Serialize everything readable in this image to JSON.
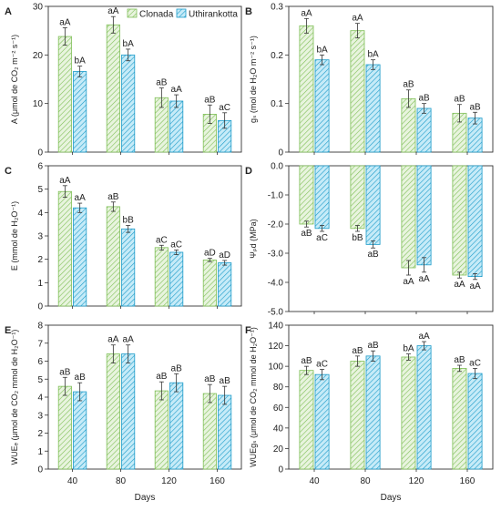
{
  "legend": [
    {
      "name": "Clonada",
      "color": "#7fbf57",
      "fill": "#e6f3dc"
    },
    {
      "name": "Uthirankotta",
      "color": "#1c9bc9",
      "fill": "#b9e4f5"
    }
  ],
  "chart_data": [
    {
      "type": "bar",
      "panel": "A",
      "ylabel": "A (μmol de CO₂ m⁻² s⁻¹)",
      "categories": [
        "40",
        "80",
        "120",
        "160"
      ],
      "ylim": [
        0,
        30
      ],
      "yticks": [
        "0",
        "10",
        "20",
        "30"
      ],
      "series": [
        {
          "name": "Clonada",
          "values": [
            23.8,
            26.2,
            11.2,
            7.8
          ],
          "errors": [
            1.8,
            1.7,
            2.0,
            1.9
          ],
          "labels": [
            "aA",
            "aA",
            "aB",
            "aB"
          ]
        },
        {
          "name": "Uthirankotta",
          "values": [
            16.6,
            20.0,
            10.5,
            6.5
          ],
          "errors": [
            1.1,
            1.2,
            1.3,
            1.6
          ],
          "labels": [
            "bA",
            "bA",
            "aA",
            "aC"
          ]
        }
      ]
    },
    {
      "type": "bar",
      "panel": "B",
      "ylabel": "gₛ (mol de H₂O m⁻² s⁻¹)",
      "categories": [
        "40",
        "80",
        "120",
        "160"
      ],
      "ylim": [
        0,
        0.3
      ],
      "yticks": [
        "0",
        "0.1",
        "0.2",
        "0.3"
      ],
      "series": [
        {
          "name": "Clonada",
          "values": [
            0.26,
            0.25,
            0.11,
            0.08
          ],
          "errors": [
            0.015,
            0.015,
            0.018,
            0.018
          ],
          "labels": [
            "aA",
            "aA",
            "aB",
            "aB"
          ]
        },
        {
          "name": "Uthirankotta",
          "values": [
            0.19,
            0.18,
            0.09,
            0.07
          ],
          "errors": [
            0.01,
            0.01,
            0.01,
            0.012
          ],
          "labels": [
            "bA",
            "bA",
            "aB",
            "aB"
          ]
        }
      ]
    },
    {
      "type": "bar",
      "panel": "C",
      "ylabel": "E (mmol de H₂O⁻¹)",
      "categories": [
        "40",
        "80",
        "120",
        "160"
      ],
      "ylim": [
        0,
        6
      ],
      "yticks": [
        "0",
        "1",
        "2",
        "3",
        "4",
        "5",
        "6"
      ],
      "series": [
        {
          "name": "Clonada",
          "values": [
            4.9,
            4.25,
            2.5,
            1.97
          ],
          "errors": [
            0.25,
            0.2,
            0.1,
            0.07
          ],
          "labels": [
            "aA",
            "aB",
            "aC",
            "aD"
          ]
        },
        {
          "name": "Uthirankotta",
          "values": [
            4.2,
            3.3,
            2.3,
            1.85
          ],
          "errors": [
            0.2,
            0.15,
            0.1,
            0.1
          ],
          "labels": [
            "aA",
            "bB",
            "aC",
            "aD"
          ]
        }
      ]
    },
    {
      "type": "bar",
      "panel": "D",
      "ylabel": "Ψₚd (MPa)",
      "categories": [
        "40",
        "80",
        "120",
        "160"
      ],
      "ylim": [
        -5,
        0
      ],
      "yticks": [
        "0.0",
        "-1.0",
        "-2.0",
        "-3.0",
        "-4.0",
        "-5.0"
      ],
      "series": [
        {
          "name": "Clonada",
          "values": [
            -2.0,
            -2.15,
            -3.5,
            -3.75
          ],
          "errors": [
            0.1,
            0.1,
            0.25,
            0.1
          ],
          "labels": [
            "aB",
            "bB",
            "aA",
            "aA"
          ]
        },
        {
          "name": "Uthirankotta",
          "values": [
            -2.15,
            -2.7,
            -3.4,
            -3.8
          ],
          "errors": [
            0.1,
            0.12,
            0.25,
            0.1
          ],
          "labels": [
            "aC",
            "aB",
            "aA",
            "aA"
          ]
        }
      ]
    },
    {
      "type": "bar",
      "panel": "E",
      "ylabel": "WUEₑ (μmol de CO₂ mmol de H₂O⁻¹)",
      "categories": [
        "40",
        "80",
        "120",
        "160"
      ],
      "ylim": [
        0,
        8
      ],
      "yticks": [
        "0",
        "1",
        "2",
        "3",
        "4",
        "5",
        "6",
        "7",
        "8"
      ],
      "series": [
        {
          "name": "Clonada",
          "values": [
            4.6,
            6.4,
            4.35,
            4.2
          ],
          "errors": [
            0.5,
            0.5,
            0.5,
            0.5
          ],
          "labels": [
            "aB",
            "aA",
            "aB",
            "aB"
          ]
        },
        {
          "name": "Uthirankotta",
          "values": [
            4.3,
            6.4,
            4.8,
            4.1
          ],
          "errors": [
            0.5,
            0.5,
            0.5,
            0.5
          ],
          "labels": [
            "aB",
            "aA",
            "aB",
            "aB"
          ]
        }
      ]
    },
    {
      "type": "bar",
      "panel": "F",
      "ylabel": "WUEgₛ (μmol de CO₂ mmol de H₂O⁻¹)",
      "categories": [
        "40",
        "80",
        "120",
        "160"
      ],
      "xlabel": "Days",
      "ylim": [
        0,
        140
      ],
      "yticks": [
        "0",
        "20",
        "40",
        "60",
        "80",
        "100",
        "120",
        "140"
      ],
      "series": [
        {
          "name": "Clonada",
          "values": [
            96,
            105,
            109,
            98
          ],
          "errors": [
            4,
            5,
            3,
            3
          ],
          "labels": [
            "aB",
            "aB",
            "bA",
            "aB"
          ]
        },
        {
          "name": "Uthirankotta",
          "values": [
            92,
            110,
            120,
            93
          ],
          "errors": [
            5,
            5,
            4,
            5
          ],
          "labels": [
            "aC",
            "aB",
            "aA",
            "aC"
          ]
        }
      ]
    }
  ],
  "xlabel": "Days"
}
